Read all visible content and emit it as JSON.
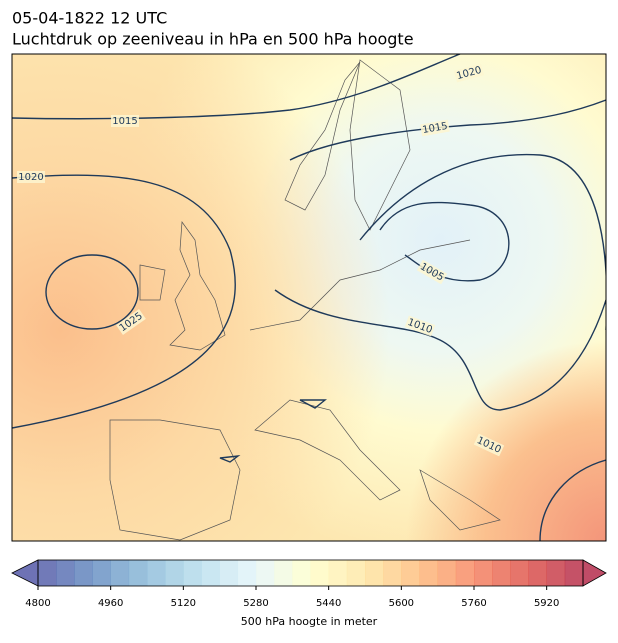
{
  "header": {
    "title": "05-04-1822 12 UTC",
    "subtitle": "Luchtdruk op zeeniveau in hPa en 500 hPa hoogte"
  },
  "map": {
    "isobar_labels": [
      "1015",
      "1020",
      "1025",
      "1020",
      "1015",
      "1005",
      "1010",
      "1010"
    ]
  },
  "colorbar": {
    "label": "500 hPa hoogte in meter",
    "lim": [
      4800,
      6000
    ],
    "step": 40,
    "ticks": [
      4800,
      4960,
      5120,
      5280,
      5440,
      5600,
      5760,
      5920
    ],
    "colors": [
      "#313695",
      "#4575b4",
      "#74add1",
      "#abd9e9",
      "#e0f3f8",
      "#ffffbf",
      "#fee090",
      "#fdae61",
      "#f46d43",
      "#d73027",
      "#a50026"
    ]
  }
}
